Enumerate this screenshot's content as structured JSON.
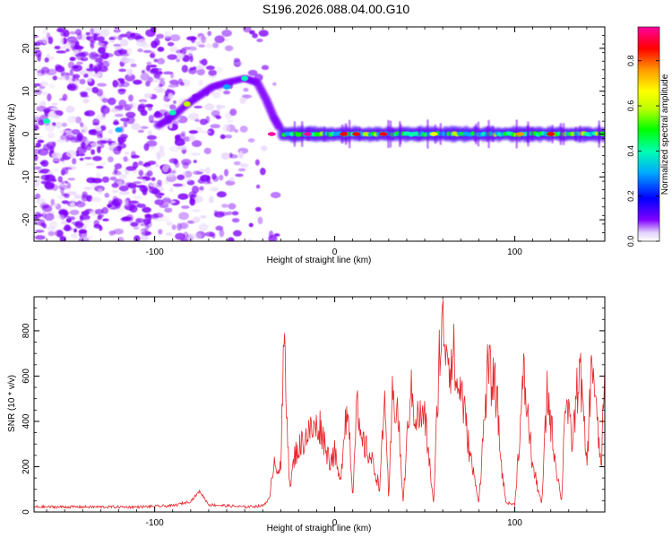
{
  "title": "S196.2026.088.04.00.G10",
  "chart_data": [
    {
      "type": "heatmap",
      "xlabel": "Height of straight line (km)",
      "ylabel": "Frequency (Hz)",
      "xlim": [
        -167,
        150
      ],
      "ylim": [
        -25,
        25
      ],
      "xticks": [
        -100,
        0,
        100
      ],
      "xtick_labels": [
        "-100",
        "0",
        "100"
      ],
      "yticks": [
        -20,
        -10,
        0,
        10,
        20
      ],
      "ytick_labels": [
        "-20",
        "-10",
        "0",
        "10",
        "20"
      ],
      "colorbar": {
        "label": "Normalized spectral amplitude",
        "range": [
          0,
          0.95
        ],
        "ticks": [
          0,
          0.2,
          0.4,
          0.6,
          0.8
        ],
        "tick_labels": [
          "0.0",
          "0.2",
          "0.4",
          "0.6",
          "0.8"
        ],
        "colors": [
          "#e9d9fb",
          "#8000ff",
          "#0000ff",
          "#00aaff",
          "#00ffb0",
          "#00ff00",
          "#c0ff00",
          "#ffff00",
          "#ff9900",
          "#ff0000",
          "#ff00a0"
        ]
      },
      "features": {
        "noise_region_x": [
          -167,
          -25
        ],
        "curve_points": [
          [
            -98,
            2
          ],
          [
            -90,
            4
          ],
          [
            -82,
            7
          ],
          [
            -75,
            9
          ],
          [
            -68,
            11
          ],
          [
            -60,
            12
          ],
          [
            -50,
            13
          ],
          [
            -43,
            12
          ],
          [
            -38,
            8
          ],
          [
            -34,
            4
          ],
          [
            -30,
            1
          ]
        ],
        "carrier_band": {
          "x_start": -30,
          "x_end": 150,
          "frequency": 0,
          "mean_amplitude": 0.4
        },
        "hotspots": [
          [
            -35,
            0.95
          ],
          [
            -15,
            0.95
          ],
          [
            5,
            0.9
          ],
          [
            12,
            0.9
          ],
          [
            27,
            0.85
          ],
          [
            55,
            0.7
          ],
          [
            103,
            0.8
          ],
          [
            120,
            0.9
          ]
        ]
      }
    },
    {
      "type": "line",
      "xlabel": "Height of straight line (km)",
      "ylabel": "SNR (10 * v/v)",
      "xlim": [
        -167,
        150
      ],
      "ylim": [
        0,
        950
      ],
      "xticks": [
        -100,
        0,
        100
      ],
      "xtick_labels": [
        "-100",
        "0",
        "100"
      ],
      "yticks": [
        0,
        200,
        400,
        600,
        800
      ],
      "ytick_labels": [
        "0",
        "200",
        "400",
        "600",
        "800"
      ],
      "color": "#e8262a",
      "envelope": {
        "x": [
          -167,
          -140,
          -110,
          -90,
          -80,
          -75,
          -70,
          -50,
          -40,
          -36,
          -34,
          -30,
          -28,
          -25,
          -22,
          -20,
          -15,
          -8,
          -3,
          0,
          3,
          6,
          8,
          10,
          12,
          14,
          16,
          18,
          20,
          25,
          28,
          30,
          32,
          35,
          38,
          42,
          45,
          50,
          55,
          58,
          60,
          62,
          64,
          66,
          68,
          70,
          75,
          80,
          85,
          90,
          92,
          95,
          100,
          105,
          110,
          115,
          118,
          122,
          126,
          128,
          132,
          136,
          140,
          143,
          146,
          148,
          150
        ],
        "y": [
          20,
          20,
          20,
          25,
          45,
          90,
          30,
          20,
          25,
          60,
          230,
          180,
          790,
          100,
          260,
          280,
          350,
          380,
          230,
          260,
          120,
          440,
          390,
          50,
          510,
          310,
          300,
          270,
          240,
          110,
          520,
          40,
          500,
          450,
          40,
          540,
          420,
          420,
          30,
          700,
          810,
          760,
          660,
          700,
          530,
          560,
          260,
          40,
          630,
          520,
          250,
          40,
          30,
          600,
          200,
          30,
          540,
          260,
          40,
          520,
          300,
          660,
          200,
          700,
          360,
          200,
          600
        ]
      }
    }
  ]
}
